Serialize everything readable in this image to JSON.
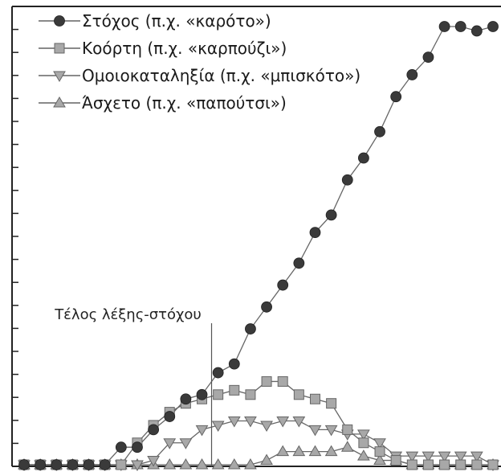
{
  "chart_data": {
    "type": "line",
    "title": "",
    "xlabel": "",
    "ylabel": "",
    "ylim": [
      0,
      1
    ],
    "grid": false,
    "legend_position": "top-left",
    "x": [
      1,
      2,
      3,
      4,
      5,
      6,
      7,
      8,
      9,
      10,
      11,
      12,
      13,
      14,
      15,
      16,
      17,
      18,
      19,
      20,
      21,
      22,
      23,
      24,
      25,
      26,
      27,
      28,
      29,
      30
    ],
    "annotation": {
      "label": "Τέλος λέξης-στόχου",
      "x": 12
    },
    "series": [
      {
        "name": "Στόχος (π.χ. «καρότο»)",
        "marker": "circle",
        "color": "#3a3a3a",
        "values": [
          0.0,
          0.0,
          0.0,
          0.0,
          0.0,
          0.0,
          0.04,
          0.04,
          0.08,
          0.11,
          0.15,
          0.16,
          0.21,
          0.23,
          0.31,
          0.36,
          0.41,
          0.46,
          0.53,
          0.57,
          0.65,
          0.7,
          0.76,
          0.84,
          0.89,
          0.93,
          1.0,
          1.0,
          0.99,
          1.0
        ]
      },
      {
        "name": "Κοόρτη (π.χ. «καρπούζι»)",
        "marker": "square",
        "color": "#a8a8a8",
        "values": [
          0.0,
          0.0,
          0.0,
          0.0,
          0.0,
          0.0,
          0.0,
          0.05,
          0.09,
          0.12,
          0.14,
          0.15,
          0.16,
          0.17,
          0.16,
          0.19,
          0.19,
          0.16,
          0.15,
          0.14,
          0.08,
          0.05,
          0.03,
          0.01,
          0.0,
          0.0,
          0.0,
          0.0,
          0.0,
          0.0
        ]
      },
      {
        "name": "Ομοιοκαταληξία (π.χ. «μπισκότο»)",
        "marker": "triangle-down",
        "color": "#a8a8a8",
        "values": [
          0.0,
          0.0,
          0.0,
          0.0,
          0.0,
          0.0,
          0.0,
          0.0,
          0.01,
          0.05,
          0.05,
          0.08,
          0.09,
          0.1,
          0.1,
          0.09,
          0.1,
          0.1,
          0.08,
          0.08,
          0.07,
          0.07,
          0.05,
          0.02,
          0.02,
          0.02,
          0.02,
          0.02,
          0.02,
          0.0
        ]
      },
      {
        "name": "Άσχετο (π.χ. «παπούτσι»)",
        "marker": "triangle-up",
        "color": "#a8a8a8",
        "values": [
          0.0,
          0.0,
          0.0,
          0.0,
          0.0,
          0.0,
          0.0,
          0.0,
          0.0,
          0.0,
          0.0,
          0.0,
          0.0,
          0.0,
          0.0,
          0.01,
          0.03,
          0.03,
          0.03,
          0.03,
          0.04,
          0.02,
          0.01,
          0.01,
          0.0,
          0.0,
          0.0,
          0.0,
          0.0,
          0.0
        ]
      }
    ]
  }
}
